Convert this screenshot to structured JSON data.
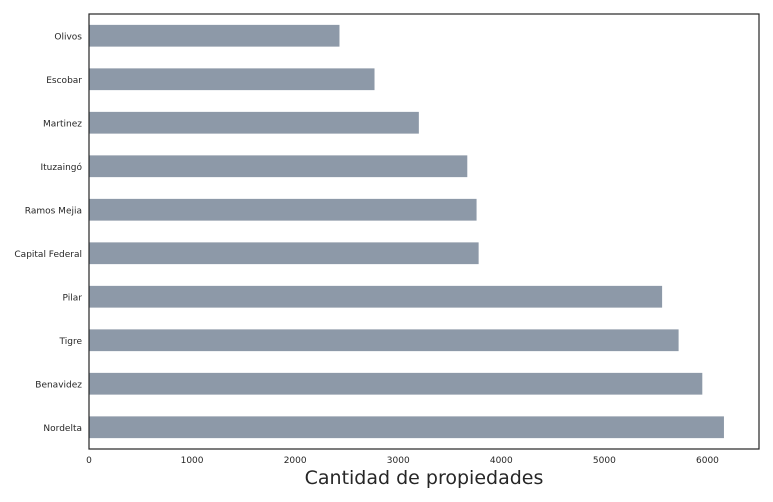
{
  "chart_data": {
    "type": "bar",
    "orientation": "horizontal",
    "categories": [
      "Nordelta",
      "Benavidez",
      "Tigre",
      "Pilar",
      "Capital Federal",
      "Ramos Mejia",
      "Ituzaingó",
      "Martinez",
      "Escobar",
      "Olivos"
    ],
    "values": [
      6160,
      5950,
      5720,
      5560,
      3780,
      3760,
      3670,
      3200,
      2770,
      2430
    ],
    "xlabel": "Cantidad de propiedades",
    "ylabel": "",
    "xlim": [
      0,
      6500
    ],
    "xticks": [
      0,
      1000,
      2000,
      3000,
      4000,
      5000,
      6000
    ],
    "grid": false,
    "bar_color": "#8d99a8"
  }
}
